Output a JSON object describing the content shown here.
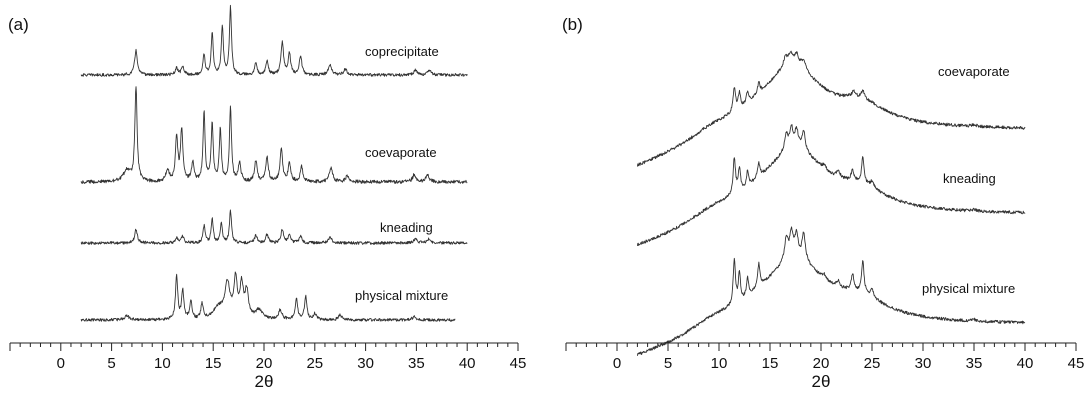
{
  "chart_data": [
    {
      "type": "line",
      "panel_label": "(a)",
      "xlabel": "2θ",
      "ylabel": "",
      "xlim": [
        -5,
        45
      ],
      "x_ticks": [
        0,
        5,
        10,
        15,
        20,
        25,
        30,
        35,
        40,
        45
      ],
      "x_minor_step": 1,
      "grid": false,
      "series": [
        {
          "name": "coprecipitate",
          "x_range": [
            2,
            40
          ],
          "baseline": 0.05,
          "slope": 0.0,
          "noise": 0.015,
          "peaks": [
            [
              7.4,
              0.26,
              0.16
            ],
            [
              11.4,
              0.07,
              0.15
            ],
            [
              12.0,
              0.09,
              0.15
            ],
            [
              14.1,
              0.22,
              0.12
            ],
            [
              14.9,
              0.44,
              0.12
            ],
            [
              15.9,
              0.5,
              0.12
            ],
            [
              16.7,
              0.72,
              0.12
            ],
            [
              19.2,
              0.12,
              0.15
            ],
            [
              20.3,
              0.14,
              0.15
            ],
            [
              21.8,
              0.34,
              0.15
            ],
            [
              22.5,
              0.22,
              0.15
            ],
            [
              23.6,
              0.2,
              0.15
            ],
            [
              26.5,
              0.1,
              0.2
            ],
            [
              28.0,
              0.06,
              0.2
            ],
            [
              34.9,
              0.05,
              0.2
            ],
            [
              36.3,
              0.05,
              0.2
            ]
          ]
        },
        {
          "name": "coevaporate",
          "x_range": [
            2,
            40
          ],
          "baseline": 0.05,
          "slope": 0.0,
          "noise": 0.018,
          "peaks": [
            [
              6.5,
              0.12,
              0.4
            ],
            [
              7.4,
              1.0,
              0.13
            ],
            [
              10.5,
              0.12,
              0.2
            ],
            [
              11.4,
              0.46,
              0.14
            ],
            [
              11.9,
              0.54,
              0.14
            ],
            [
              13.0,
              0.2,
              0.15
            ],
            [
              14.1,
              0.72,
              0.12
            ],
            [
              14.9,
              0.62,
              0.12
            ],
            [
              15.7,
              0.54,
              0.12
            ],
            [
              16.7,
              0.78,
              0.12
            ],
            [
              17.6,
              0.2,
              0.15
            ],
            [
              19.2,
              0.22,
              0.15
            ],
            [
              20.3,
              0.26,
              0.15
            ],
            [
              21.7,
              0.34,
              0.15
            ],
            [
              22.5,
              0.2,
              0.15
            ],
            [
              23.7,
              0.16,
              0.15
            ],
            [
              26.6,
              0.14,
              0.2
            ],
            [
              28.2,
              0.06,
              0.2
            ],
            [
              34.8,
              0.08,
              0.2
            ],
            [
              36.1,
              0.07,
              0.2
            ]
          ]
        },
        {
          "name": "kneading",
          "x_range": [
            2,
            40
          ],
          "baseline": 0.05,
          "slope": 0.0,
          "noise": 0.015,
          "peaks": [
            [
              7.4,
              0.14,
              0.16
            ],
            [
              11.4,
              0.05,
              0.15
            ],
            [
              12.0,
              0.07,
              0.15
            ],
            [
              14.1,
              0.18,
              0.12
            ],
            [
              14.9,
              0.26,
              0.12
            ],
            [
              15.8,
              0.2,
              0.12
            ],
            [
              16.7,
              0.34,
              0.12
            ],
            [
              19.2,
              0.08,
              0.15
            ],
            [
              20.3,
              0.09,
              0.15
            ],
            [
              21.8,
              0.14,
              0.15
            ],
            [
              22.5,
              0.09,
              0.15
            ],
            [
              23.6,
              0.08,
              0.15
            ],
            [
              26.5,
              0.06,
              0.2
            ],
            [
              34.9,
              0.04,
              0.2
            ],
            [
              36.2,
              0.04,
              0.2
            ]
          ]
        },
        {
          "name": "physical mixture",
          "x_range": [
            2,
            38.8
          ],
          "baseline": 0.05,
          "slope": 0.0,
          "noise": 0.015,
          "peaks": [
            [
              6.5,
              0.04,
              0.3
            ],
            [
              11.4,
              0.46,
              0.13
            ],
            [
              12.0,
              0.3,
              0.13
            ],
            [
              12.8,
              0.2,
              0.13
            ],
            [
              13.9,
              0.16,
              0.13
            ],
            [
              16.4,
              0.36,
              0.3
            ],
            [
              17.2,
              0.4,
              0.2
            ],
            [
              17.8,
              0.34,
              0.2
            ],
            [
              18.3,
              0.28,
              0.2
            ],
            [
              15.5,
              0.12,
              0.6
            ],
            [
              19.5,
              0.1,
              0.4
            ],
            [
              21.6,
              0.1,
              0.2
            ],
            [
              23.2,
              0.22,
              0.14
            ],
            [
              24.1,
              0.24,
              0.14
            ],
            [
              25.0,
              0.06,
              0.2
            ],
            [
              27.5,
              0.05,
              0.2
            ],
            [
              34.8,
              0.04,
              0.2
            ]
          ]
        }
      ]
    },
    {
      "type": "line",
      "panel_label": "(b)",
      "xlabel": "2θ",
      "ylabel": "",
      "xlim": [
        -5,
        45
      ],
      "x_ticks": [
        0,
        5,
        10,
        15,
        20,
        25,
        30,
        35,
        40,
        45
      ],
      "x_minor_step": 1,
      "grid": false,
      "series": [
        {
          "name": "coevaporate",
          "x_range": [
            2,
            40
          ],
          "baseline": 0.1,
          "slope": 0.0,
          "noise": 0.02,
          "peaks": [
            [
              17.2,
              0.8,
              3.5
            ],
            [
              9.5,
              0.15,
              3.0
            ],
            [
              24.0,
              0.25,
              3.0
            ],
            [
              11.5,
              0.32,
              0.15
            ],
            [
              12.0,
              0.22,
              0.15
            ],
            [
              12.8,
              0.16,
              0.15
            ],
            [
              13.9,
              0.14,
              0.15
            ],
            [
              16.5,
              0.12,
              0.25
            ],
            [
              17.0,
              0.14,
              0.25
            ],
            [
              17.6,
              0.14,
              0.25
            ],
            [
              18.3,
              0.12,
              0.25
            ],
            [
              23.2,
              0.08,
              0.2
            ],
            [
              24.1,
              0.1,
              0.2
            ],
            [
              35.0,
              0.02,
              0.3
            ]
          ]
        },
        {
          "name": "kneading",
          "x_range": [
            2,
            40
          ],
          "baseline": 0.1,
          "slope": 0.0,
          "noise": 0.02,
          "peaks": [
            [
              17.4,
              0.82,
              3.8
            ],
            [
              9.5,
              0.15,
              3.0
            ],
            [
              24.0,
              0.22,
              3.0
            ],
            [
              11.5,
              0.48,
              0.14
            ],
            [
              12.0,
              0.3,
              0.14
            ],
            [
              12.8,
              0.2,
              0.14
            ],
            [
              13.9,
              0.18,
              0.14
            ],
            [
              16.6,
              0.22,
              0.2
            ],
            [
              17.1,
              0.26,
              0.2
            ],
            [
              17.6,
              0.24,
              0.2
            ],
            [
              18.3,
              0.26,
              0.2
            ],
            [
              20.3,
              0.06,
              0.2
            ],
            [
              21.7,
              0.08,
              0.2
            ],
            [
              23.1,
              0.14,
              0.15
            ],
            [
              24.1,
              0.34,
              0.14
            ],
            [
              25.0,
              0.08,
              0.2
            ],
            [
              35.0,
              0.02,
              0.3
            ]
          ]
        },
        {
          "name": "physical mixture",
          "x_range": [
            2,
            40
          ],
          "baseline": 0.1,
          "slope": 0.0,
          "noise": 0.02,
          "peaks": [
            [
              17.4,
              0.82,
              3.8
            ],
            [
              9.5,
              0.15,
              3.0
            ],
            [
              24.0,
              0.22,
              3.0
            ],
            [
              11.5,
              0.6,
              0.13
            ],
            [
              12.0,
              0.38,
              0.13
            ],
            [
              12.8,
              0.24,
              0.13
            ],
            [
              13.9,
              0.3,
              0.13
            ],
            [
              16.6,
              0.3,
              0.2
            ],
            [
              17.1,
              0.34,
              0.2
            ],
            [
              17.6,
              0.3,
              0.2
            ],
            [
              18.3,
              0.36,
              0.2
            ],
            [
              20.3,
              0.06,
              0.2
            ],
            [
              21.7,
              0.08,
              0.2
            ],
            [
              23.1,
              0.22,
              0.15
            ],
            [
              24.1,
              0.42,
              0.14
            ],
            [
              25.0,
              0.1,
              0.2
            ],
            [
              35.0,
              0.02,
              0.3
            ]
          ]
        }
      ]
    }
  ]
}
